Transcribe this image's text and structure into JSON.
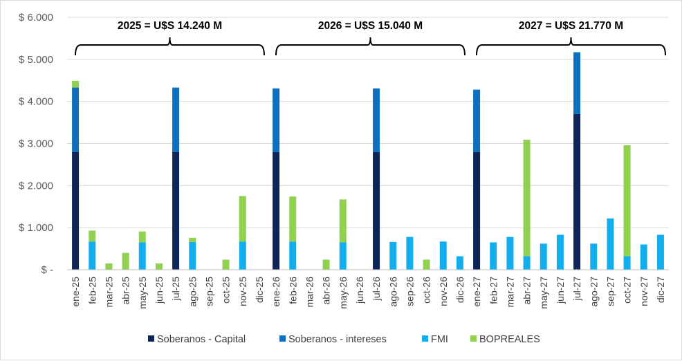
{
  "chart_data": {
    "type": "bar",
    "stacked": true,
    "title": "",
    "xlabel": "",
    "ylabel": "",
    "ylim": [
      0,
      6000
    ],
    "yticks": [
      0,
      1000,
      2000,
      3000,
      4000,
      5000,
      6000
    ],
    "ytick_labels": [
      "$ -",
      "$ 1.000",
      "$ 2.000",
      "$ 3.000",
      "$ 4.000",
      "$ 5.000",
      "$ 6.000"
    ],
    "grid": true,
    "legend_position": "bottom",
    "categories": [
      "ene-25",
      "feb-25",
      "mar-25",
      "abr-25",
      "may-25",
      "jun-25",
      "jul-25",
      "ago-25",
      "sep-25",
      "oct-25",
      "nov-25",
      "dic-25",
      "ene-26",
      "feb-26",
      "mar-26",
      "abr-26",
      "may-26",
      "jun-26",
      "jul-26",
      "ago-26",
      "sep-26",
      "oct-26",
      "nov-26",
      "dic-26",
      "ene-27",
      "feb-27",
      "mar-27",
      "abr-27",
      "may-27",
      "jun-27",
      "jul-27",
      "ago-27",
      "sep-27",
      "oct-27",
      "nov-27",
      "dic-27"
    ],
    "series": [
      {
        "name": "Soberanos - Capital",
        "color": "#0f2557",
        "values": [
          2800,
          0,
          0,
          0,
          0,
          0,
          2800,
          0,
          0,
          0,
          0,
          0,
          2800,
          0,
          0,
          0,
          0,
          0,
          2800,
          0,
          0,
          0,
          0,
          0,
          2800,
          0,
          0,
          0,
          0,
          0,
          3700,
          0,
          0,
          0,
          0,
          0
        ]
      },
      {
        "name": "Soberanos - intereses",
        "color": "#0e6fbe",
        "values": [
          1530,
          0,
          0,
          0,
          0,
          0,
          1530,
          0,
          0,
          0,
          0,
          0,
          1510,
          0,
          0,
          0,
          0,
          0,
          1510,
          0,
          0,
          0,
          0,
          0,
          1480,
          0,
          0,
          0,
          0,
          0,
          1470,
          0,
          0,
          0,
          0,
          0
        ]
      },
      {
        "name": "FMI",
        "color": "#12aef0",
        "values": [
          0,
          670,
          0,
          0,
          650,
          0,
          0,
          660,
          0,
          0,
          670,
          0,
          0,
          670,
          0,
          0,
          650,
          0,
          0,
          660,
          780,
          0,
          670,
          320,
          0,
          650,
          780,
          320,
          620,
          830,
          0,
          620,
          1220,
          320,
          600,
          830
        ]
      },
      {
        "name": "BOPREALES",
        "color": "#92d050",
        "values": [
          160,
          260,
          150,
          400,
          260,
          150,
          0,
          100,
          0,
          240,
          1080,
          0,
          0,
          1070,
          0,
          240,
          1020,
          0,
          0,
          0,
          0,
          240,
          0,
          0,
          0,
          0,
          0,
          2770,
          0,
          0,
          0,
          0,
          0,
          2640,
          0,
          0
        ]
      }
    ],
    "annotations": [
      {
        "label": "2025 = U$S 14.240 M",
        "from": "ene-25",
        "to": "dic-25"
      },
      {
        "label": "2026 = U$S 15.040 M",
        "from": "ene-26",
        "to": "dic-26"
      },
      {
        "label": "2027 = U$S 21.770 M",
        "from": "ene-27",
        "to": "dic-27"
      }
    ]
  }
}
